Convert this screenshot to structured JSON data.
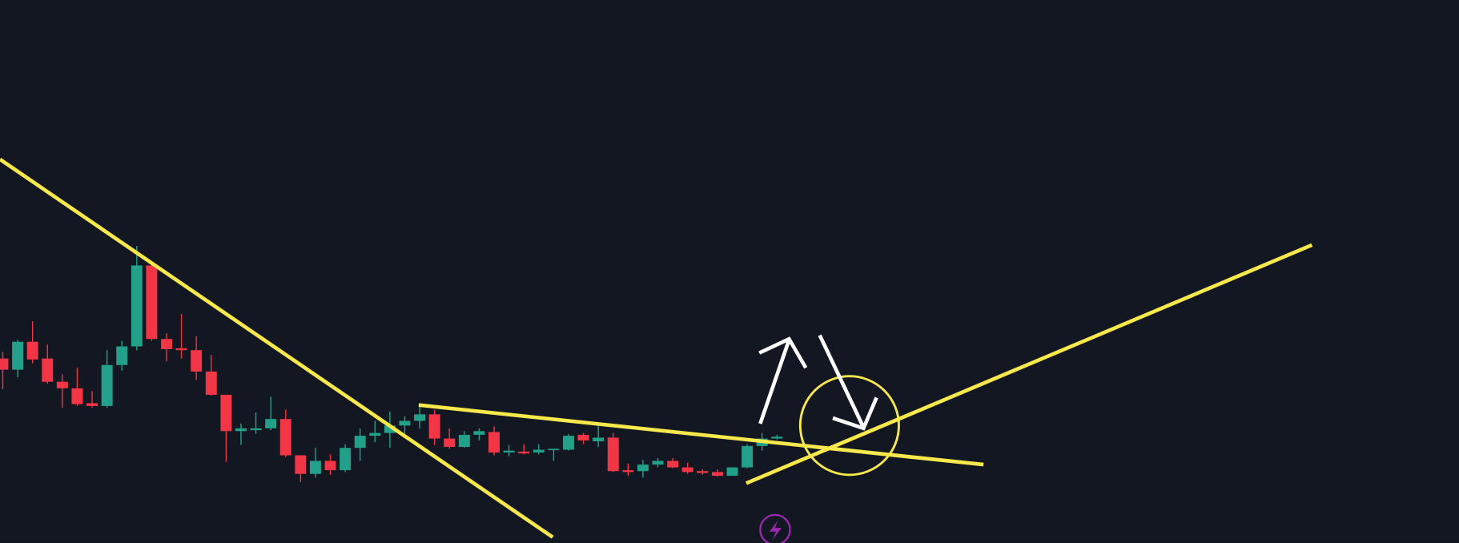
{
  "chart_data": {
    "type": "candlestick",
    "open": [
      198,
      186,
      216,
      198,
      173,
      166,
      150,
      147,
      191,
      211,
      298,
      219,
      209,
      207,
      184,
      159,
      120,
      121,
      123,
      133,
      94,
      74,
      88,
      78,
      102,
      115,
      118,
      126,
      131,
      138,
      112,
      103,
      116,
      119,
      97,
      98,
      97,
      100,
      100,
      116,
      109,
      113,
      78,
      77,
      84,
      88,
      81,
      77,
      76,
      72,
      81,
      104,
      112
    ],
    "high": [
      205,
      218,
      238,
      213,
      181,
      188,
      163,
      207,
      217,
      319,
      300,
      225,
      246,
      222,
      202,
      159,
      128,
      140,
      157,
      143,
      94,
      102,
      95,
      106,
      123,
      131,
      141,
      136,
      148,
      143,
      123,
      120,
      123,
      125,
      105,
      106,
      106,
      101,
      117,
      118,
      128,
      118,
      85,
      89,
      91,
      91,
      86,
      79,
      79,
      81,
      106,
      118,
      116
    ],
    "low": [
      165,
      178,
      193,
      171,
      145,
      147,
      145,
      145,
      185,
      207,
      217,
      195,
      198,
      175,
      158,
      87,
      105,
      117,
      121,
      92,
      65,
      70,
      73,
      76,
      88,
      108,
      102,
      117,
      123,
      105,
      101,
      102,
      110,
      94,
      93,
      95,
      95,
      88,
      99,
      106,
      103,
      76,
      72,
      70,
      81,
      80,
      74,
      73,
      71,
      72,
      80,
      99,
      111
    ],
    "close": [
      186,
      216,
      197,
      173,
      166,
      149,
      147,
      191,
      211,
      298,
      219,
      208,
      207,
      184,
      159,
      120,
      123,
      123,
      133,
      94,
      74,
      88,
      78,
      102,
      115,
      118,
      126,
      131,
      138,
      112,
      103,
      116,
      120,
      97,
      99,
      96,
      100,
      101,
      115,
      110,
      113,
      77,
      76,
      84,
      88,
      81,
      76,
      75,
      72,
      81,
      104,
      112,
      114
    ],
    "ylim": [
      0,
      583
    ],
    "up_color": "#22a08a",
    "down_color": "#f23645"
  }
}
